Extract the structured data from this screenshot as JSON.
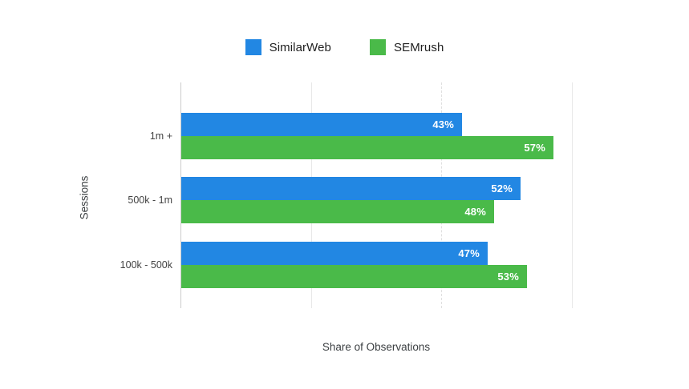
{
  "chart_data": {
    "type": "bar",
    "orientation": "horizontal",
    "title": "",
    "categories": [
      "1m +",
      "500k - 1m",
      "100k - 500k"
    ],
    "series": [
      {
        "name": "SimilarWeb",
        "color": "#2287E3",
        "values": [
          43,
          52,
          47
        ],
        "value_labels": [
          "43%",
          "52%",
          "47%"
        ]
      },
      {
        "name": "SEMrush",
        "color": "#4ABA49",
        "values": [
          57,
          48,
          53
        ],
        "value_labels": [
          "57%",
          "48%",
          "53%"
        ]
      }
    ],
    "xlabel": "Share of Observations",
    "ylabel": "Sessions",
    "xlim": [
      0,
      60
    ],
    "x_gridline_step": 20,
    "x_tick_labels_visible": false,
    "grid": "vertical",
    "legend_position": "top-center",
    "value_labels_inside_bars": true,
    "background_color": "#ffffff"
  }
}
